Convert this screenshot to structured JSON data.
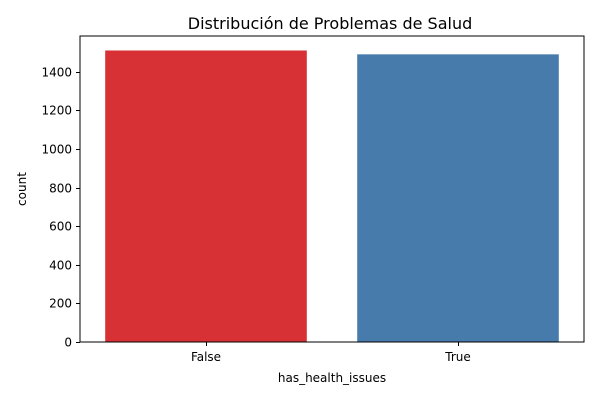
{
  "chart_data": {
    "type": "bar",
    "title": "Distribución de Problemas de Salud",
    "xlabel": "has_health_issues",
    "ylabel": "count",
    "categories": [
      "False",
      "True"
    ],
    "values": [
      1510,
      1490
    ],
    "colors": [
      "#d73035",
      "#467bab"
    ],
    "ylim": [
      0,
      1585
    ],
    "yticks": [
      0,
      200,
      400,
      600,
      800,
      1000,
      1200,
      1400
    ],
    "grid": false,
    "legend": "none"
  }
}
